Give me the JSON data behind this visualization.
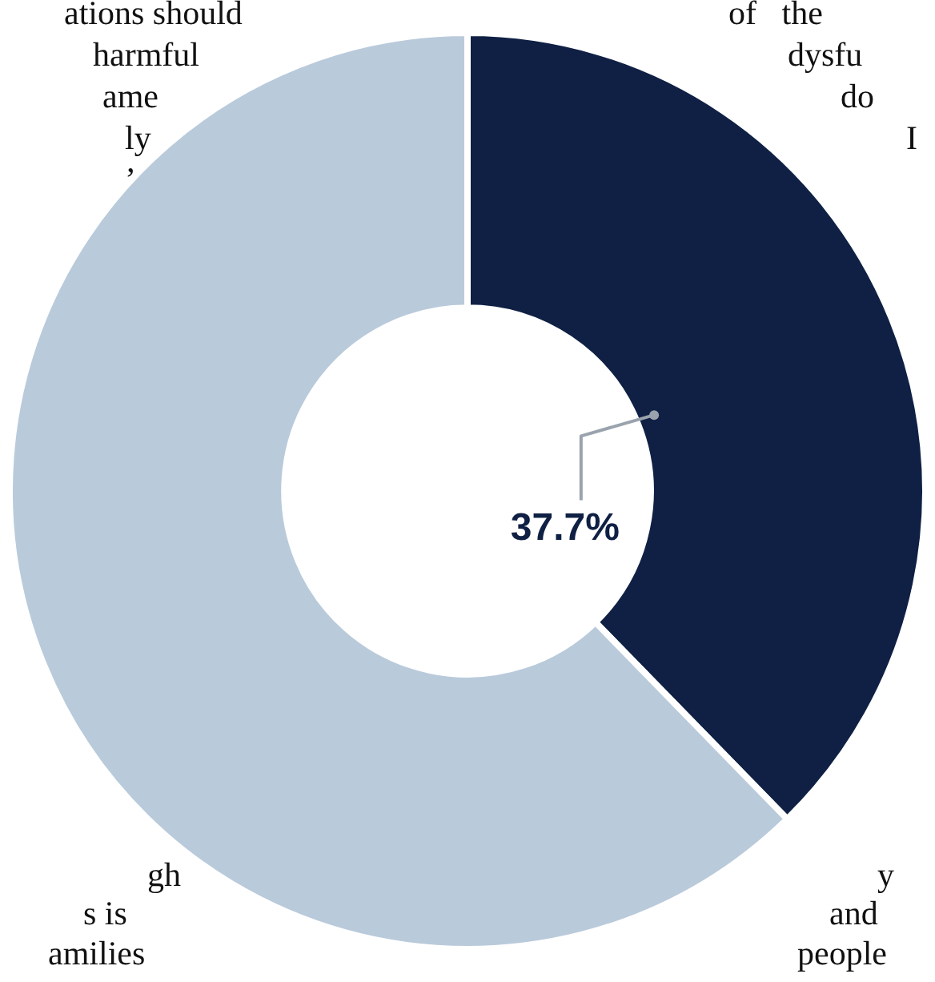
{
  "chart_data": {
    "type": "donut",
    "categories": [
      null,
      null
    ],
    "values": [
      37.7,
      62.3
    ],
    "colors": [
      "#0f2044",
      "#b9cadb"
    ],
    "value_labels": [
      "37.7%",
      null
    ],
    "legend": false,
    "annotations": [
      "ations should",
      "harmful",
      "ame",
      "ly",
      "’",
      "gh",
      "s is",
      "amilies",
      "of   the",
      "dysfu",
      "do",
      "I",
      "y",
      "and",
      "people"
    ]
  }
}
